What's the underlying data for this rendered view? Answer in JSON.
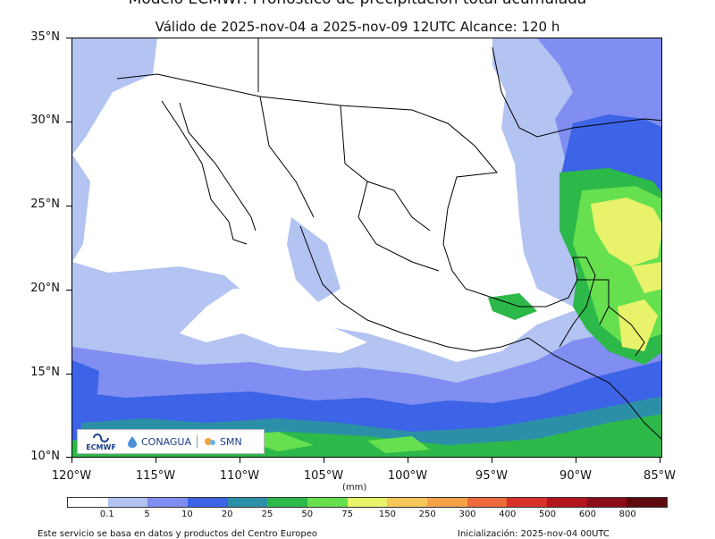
{
  "title": "Modelo ECMWF. Pronóstico de precipitación total acumulada",
  "subtitle": "Válido de 2025-nov-04 a 2025-nov-09 12UTC   Alcance: 120 h",
  "map": {
    "lat_labels": [
      "35°N",
      "30°N",
      "25°N",
      "20°N",
      "15°N",
      "10°N"
    ],
    "lon_labels": [
      "120°W",
      "115°W",
      "110°W",
      "105°W",
      "100°W",
      "95°W",
      "90°W",
      "85°W"
    ]
  },
  "colorbar": {
    "unit": "(mm)",
    "labels": [
      "0.1",
      "5",
      "10",
      "20",
      "25",
      "50",
      "75",
      "150",
      "250",
      "300",
      "400",
      "500",
      "600",
      "800"
    ],
    "colors": [
      "#ffffff",
      "#b3c3f2",
      "#7f8ef0",
      "#3d63e6",
      "#2c8fa8",
      "#2db84a",
      "#66e04f",
      "#e8f26a",
      "#f6c659",
      "#f3a24b",
      "#ec6a3b",
      "#d8322b",
      "#b3161f",
      "#8a0e1a",
      "#5e0a0e"
    ]
  },
  "logos": {
    "ecmwf": "ECMWF",
    "conagua": "CONAGUA",
    "smn": "SMN"
  },
  "footer": {
    "left": "Este servicio se basa en datos y productos del Centro Europeo",
    "right": "Inicialización: 2025-nov-04 00UTC"
  }
}
